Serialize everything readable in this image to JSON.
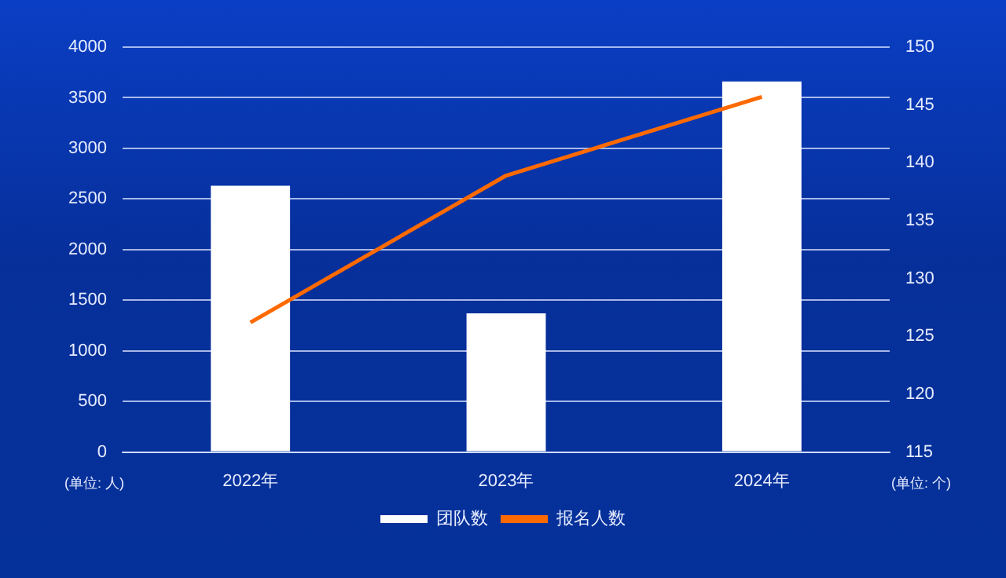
{
  "chart_data": {
    "type": "bar",
    "categories": [
      "2022年",
      "2023年",
      "2024年"
    ],
    "series": [
      {
        "name": "团队数",
        "color": "#ffffff",
        "values": [
          2630,
          1370,
          3660
        ]
      },
      {
        "name": "报名人数",
        "type": "line",
        "axis": "y2",
        "color": "#ff6a00",
        "values": [
          126.2,
          138.9,
          145.7
        ]
      }
    ],
    "ylabel": "(单位: 人)",
    "y2label": "(单位: 个)",
    "ylim": [
      0,
      4000
    ],
    "yticks": [
      0,
      500,
      1000,
      1500,
      2000,
      2500,
      3000,
      3500,
      4000
    ],
    "y2lim": [
      115,
      150
    ],
    "y2ticks": [
      115,
      120,
      125,
      130,
      135,
      140,
      145,
      150
    ],
    "grid": "y",
    "legend": "bottom",
    "marker": "none"
  }
}
